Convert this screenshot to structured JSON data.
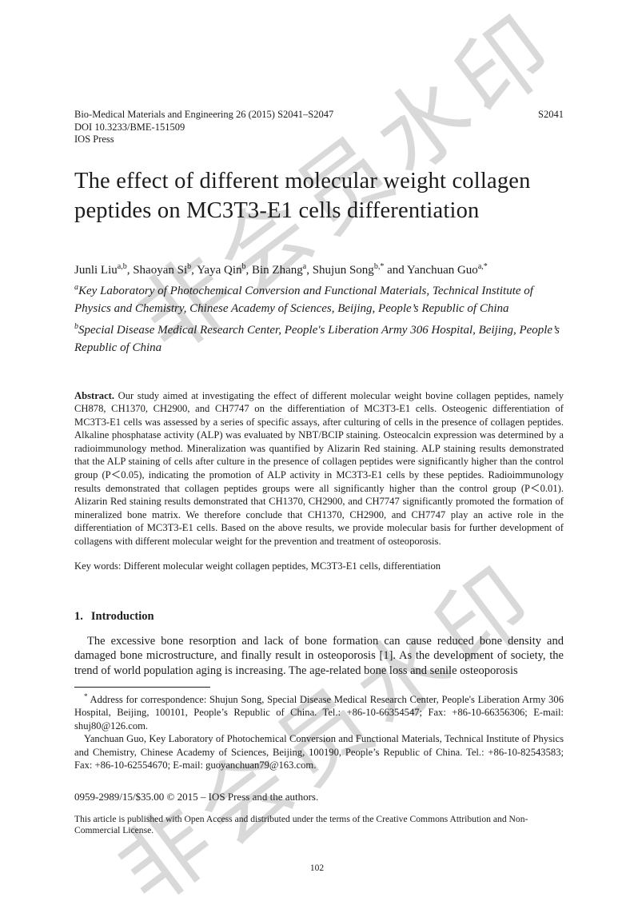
{
  "header": {
    "journal_line": "Bio-Medical Materials and Engineering 26 (2015) S2041–S2047",
    "doi_line": "DOI 10.3233/BME-151509",
    "publisher": "IOS Press",
    "page_ref": "S2041"
  },
  "title": "The effect of different molecular weight collagen peptides on MC3T3-E1 cells differentiation",
  "authors": [
    {
      "prefix": "",
      "name": "Junli Liu",
      "sup": "a,b"
    },
    {
      "prefix": ", ",
      "name": "Shaoyan Si",
      "sup": "b"
    },
    {
      "prefix": ", ",
      "name": "Yaya Qin",
      "sup": "b"
    },
    {
      "prefix": ", ",
      "name": "Bin Zhang",
      "sup": "a"
    },
    {
      "prefix": ", ",
      "name": "Shujun Song",
      "sup": "b,*"
    },
    {
      "prefix": " and ",
      "name": "Yanchuan Guo",
      "sup": "a,*"
    }
  ],
  "affiliations": [
    {
      "sup": "a",
      "text": "Key Laboratory of Photochemical Conversion and Functional Materials, Technical Institute of Physics and Chemistry, Chinese Academy of Sciences, Beijing, People’s Republic of China"
    },
    {
      "sup": "b",
      "text": "Special Disease Medical Research Center, People's Liberation Army 306 Hospital, Beijing, People’s Republic of China"
    }
  ],
  "abstract": {
    "label": "Abstract.",
    "text": " Our study aimed at investigating the effect of different molecular weight bovine collagen peptides, namely CH878, CH1370, CH2900, and CH7747 on the differentiation of MC3T3-E1 cells. Osteogenic differentiation of MC3T3-E1 cells was assessed by a series of specific assays, after culturing of cells in the presence of collagen peptides. Alkaline phosphatase activity (ALP) was evaluated by NBT/BCIP staining. Osteocalcin expression was determined by a radioimmunology method. Mineralization was quantified by Alizarin Red staining. ALP staining results demonstrated that the ALP staining of cells after culture in the presence of collagen peptides were significantly higher than the control group (P＜0.05), indicating the promotion of ALP activity in MC3T3-E1 cells by these peptides. Radioimmunology results demonstrated that collagen peptides groups were all significantly higher than the control group (P＜0.01). Alizarin Red staining results demonstrated that CH1370, CH2900, and CH7747 significantly promoted the formation of mineralized bone matrix. We therefore conclude that CH1370, CH2900, and CH7747 play an active role in the differentiation of MC3T3-E1 cells. Based on the above results, we provide molecular basis for further development of collagens with different molecular weight for the prevention and treatment of osteoporosis."
  },
  "keywords": {
    "label": "Key words:",
    "text": " Different molecular weight collagen peptides, MC3T3-E1 cells, differentiation"
  },
  "introduction": {
    "heading_number": "1.",
    "heading_text": "Introduction",
    "paragraph": "The excessive bone resorption and lack of bone formation can cause reduced bone density and damaged bone microstructure, and finally result in osteoporosis [1]. As the development of society, the trend of world population aging is increasing. The age-related bone loss and senile osteoporosis"
  },
  "footnote": {
    "marker": "*",
    "para1": " Address for correspondence: Shujun Song, Special Disease Medical Research Center, People's Liberation Army 306 Hospital, Beijing, 100101, People’s Republic of China. Tel.: +86-10-66354547; Fax: +86-10-66356306; E-mail: shuj80@126.com.",
    "para2": "Yanchuan Guo, Key Laboratory of Photochemical Conversion and Functional Materials, Technical Institute of Physics and Chemistry, Chinese Academy of Sciences, Beijing, 100190, People’s Republic of China. Tel.: +86-10-82543583; Fax: +86-10-62554670; E-mail: guoyanchuan79@163.com."
  },
  "footer": {
    "copyright": "0959-2989/15/$35.00 © 2015 – IOS Press and the authors.",
    "license": "This article is published with Open Access and distributed under the terms of the Creative Commons Attribution and Non-Commercial License.",
    "page_number": "102"
  },
  "watermark": {
    "text": "非会员水印",
    "color": "#d9d9d9"
  }
}
